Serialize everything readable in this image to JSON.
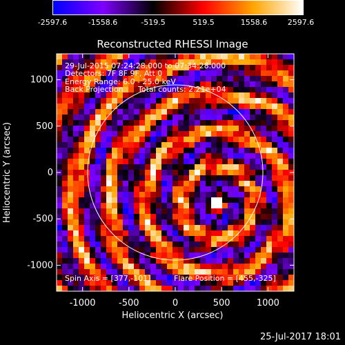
{
  "colorbar": {
    "ticks": [
      "-2597.6",
      "-1558.6",
      "-519.5",
      "519.5",
      "1558.6",
      "2597.6"
    ],
    "min": -2597.6,
    "max": 2597.6
  },
  "chart_data": {
    "type": "heatmap",
    "title": "Reconstructed RHESSI Image",
    "xlabel": "Heliocentric X (arcsec)",
    "ylabel": "Heliocentric Y (arcsec)",
    "xlim": [
      -1280,
      1280
    ],
    "ylim": [
      -1280,
      1280
    ],
    "xticks": [
      "-1000",
      "-500",
      "0",
      "500",
      "1000"
    ],
    "yticks": [
      "-1000",
      "-500",
      "0",
      "500",
      "1000"
    ],
    "xtick_values": [
      -1000,
      -500,
      0,
      500,
      1000
    ],
    "ytick_values": [
      -1000,
      -500,
      0,
      500,
      1000
    ],
    "solar_limb_radius": 945,
    "flare_position": [
      455,
      -325
    ],
    "colormap": [
      "#0000ff",
      "#7f00ff",
      "#000000",
      "#ff0000",
      "#ffa500",
      "#ffffff"
    ]
  },
  "annotations": {
    "time_range": "29-Jul-2015 07:24:28.000 to 07:34:28.000",
    "detectors": "Detectors: 7F 8F 9F, Att 0",
    "energy": "Energy Range: 6.0 - 25.0 keV",
    "method": "Back Projection",
    "counts": "Total counts: 2.21e+04",
    "spin_axis": "Spin Axis = [377,-101]",
    "flare_pos": "Flare Position = [455,-325]"
  },
  "footer": {
    "date": "25-Jul-2017 18:01"
  }
}
